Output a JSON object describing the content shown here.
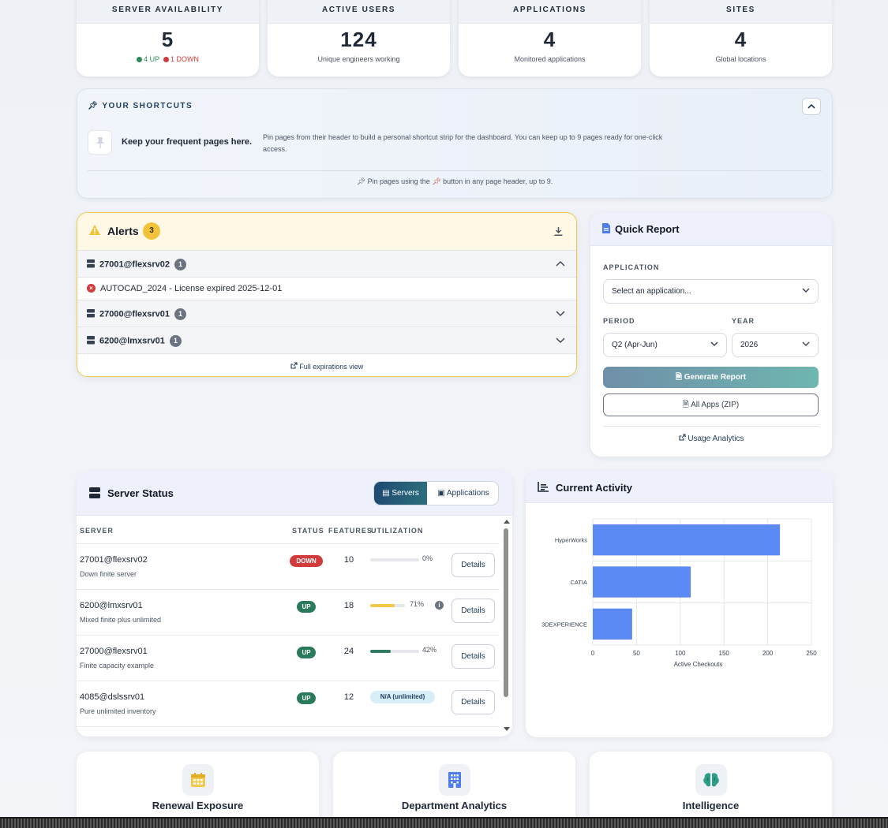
{
  "stats": [
    {
      "label": "SERVER AVAILABILITY",
      "value": "5",
      "up": "4 UP",
      "down": "1 DOWN",
      "up_color": "#2e8b57",
      "down_color": "#d03a3a"
    },
    {
      "label": "ACTIVE USERS",
      "value": "124",
      "sub": "Unique engineers working"
    },
    {
      "label": "APPLICATIONS",
      "value": "4",
      "sub": "Monitored applications"
    },
    {
      "label": "SITES",
      "value": "4",
      "sub": "Global locations"
    }
  ],
  "shortcuts": {
    "title": "YOUR SHORTCUTS",
    "empty_title": "Keep your frequent pages here.",
    "description": "Pin pages from their header to build a personal shortcut strip for the dashboard. You can keep up to 9 pages ready for one-click access.",
    "hint_before": "Pin pages using the",
    "hint_after": "button in any page header, up to 9."
  },
  "alerts": {
    "title": "Alerts",
    "count": "3",
    "groups": [
      {
        "server": "27001@flexsrv02",
        "count": "1",
        "expanded": true,
        "items": [
          "AUTOCAD_2024 - License expired 2025-12-01"
        ]
      },
      {
        "server": "27000@flexsrv01",
        "count": "1",
        "expanded": false
      },
      {
        "server": "6200@lmxsrv01",
        "count": "1",
        "expanded": false
      }
    ],
    "footer_link": "Full expirations view"
  },
  "quick_report": {
    "title": "Quick Report",
    "application_label": "APPLICATION",
    "application_placeholder": "Select an application...",
    "period_label": "PERIOD",
    "period_value": "Q2 (Apr-Jun)",
    "year_label": "YEAR",
    "year_value": "2026",
    "generate_label": "Generate Report",
    "zip_label": "All Apps (ZIP)",
    "analytics_link": "Usage Analytics"
  },
  "server_status": {
    "title": "Server Status",
    "toggle": {
      "servers": "Servers",
      "applications": "Applications"
    },
    "columns": {
      "server": "SERVER",
      "status": "STATUS",
      "features": "FEATURES",
      "utilization": "UTILIZATION"
    },
    "rows": [
      {
        "server": "27001@flexsrv02",
        "desc": "Down finite server",
        "status": "DOWN",
        "features": "10",
        "util": 0,
        "util_label": "0%",
        "bar_color": "#cfd3da",
        "info": false
      },
      {
        "server": "6200@lmxsrv01",
        "desc": "Mixed finite plus unlimited",
        "status": "UP",
        "features": "18",
        "util": 71,
        "util_label": "71%",
        "bar_color": "#f2c94c",
        "info": true
      },
      {
        "server": "27000@flexsrv01",
        "desc": "Finite capacity example",
        "status": "UP",
        "features": "24",
        "util": 42,
        "util_label": "42%",
        "bar_color": "#2e7d62",
        "info": false
      },
      {
        "server": "4085@dslssrv01",
        "desc": "Pure unlimited inventory",
        "status": "UP",
        "features": "12",
        "util": null,
        "util_label": "N/A (unlimited)",
        "bar_color": "#d8effa",
        "info": false
      }
    ],
    "details_label": "Details",
    "colors": {
      "up": "#2a7a5c",
      "down": "#d23b3b"
    }
  },
  "activity": {
    "title": "Current Activity"
  },
  "chart_data": {
    "type": "bar",
    "orientation": "horizontal",
    "categories": [
      "HyperWorks",
      "CATIA",
      "3DEXPERIENCE"
    ],
    "values": [
      214,
      112,
      45
    ],
    "xlabel": "Active Checkouts",
    "ylabel": "",
    "xlim": [
      0,
      250
    ],
    "xticks": [
      "0",
      "50",
      "100",
      "150",
      "200",
      "250"
    ],
    "grid": true,
    "bar_color": "#5b8af5"
  },
  "bottom_cards": [
    {
      "title": "Renewal Exposure",
      "icon": "calendar-icon",
      "icon_color": "#f2c94c"
    },
    {
      "title": "Department Analytics",
      "icon": "building-icon",
      "icon_color": "#4f7cf0"
    },
    {
      "title": "Intelligence",
      "icon": "brain-icon",
      "icon_color": "#2f9c8a"
    }
  ]
}
